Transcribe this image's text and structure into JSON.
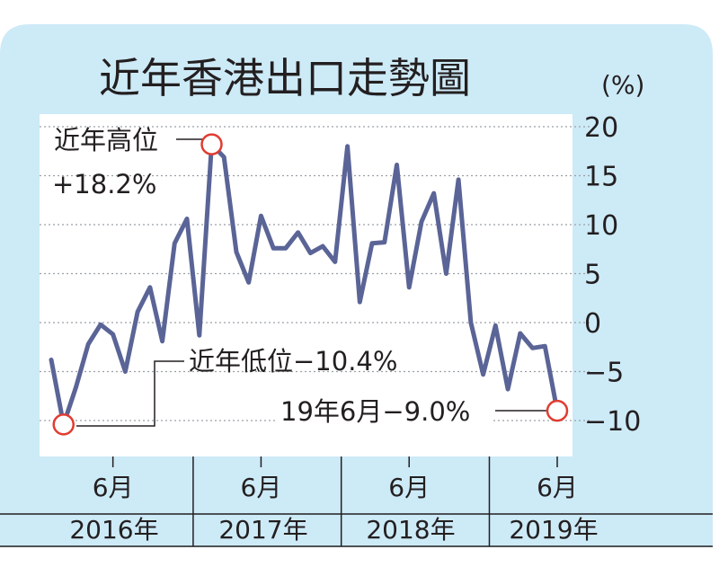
{
  "title": "近年香港出口走勢圖",
  "unit_label": "(%)",
  "colors": {
    "panel": "#cdeaf7",
    "plot_bg": "#ffffff",
    "line": "#5a6496",
    "marker": "#e03c31",
    "text": "#231f20",
    "grid": "#9aa0a6"
  },
  "chart_data": {
    "type": "line",
    "title": "近年香港出口走勢圖",
    "ylabel": "(%)",
    "xlabel": "",
    "ylim": [
      -12.5,
      21
    ],
    "yticks": [
      20,
      15,
      10,
      5,
      0,
      -5,
      -10
    ],
    "ytick_labels": [
      "20",
      "15",
      "10",
      "5",
      "0",
      "−5",
      "−10"
    ],
    "grid": true,
    "x_month_labels": [
      "6月",
      "6月",
      "6月",
      "6月"
    ],
    "year_labels": [
      "2016年",
      "2017年",
      "2018年",
      "2019年"
    ],
    "x": [
      "2016-01",
      "2016-02",
      "2016-03",
      "2016-04",
      "2016-05",
      "2016-06",
      "2016-07",
      "2016-08",
      "2016-09",
      "2016-10",
      "2016-11",
      "2016-12",
      "2017-01",
      "2017-02",
      "2017-03",
      "2017-04",
      "2017-05",
      "2017-06",
      "2017-07",
      "2017-08",
      "2017-09",
      "2017-10",
      "2017-11",
      "2017-12",
      "2018-01",
      "2018-02",
      "2018-03",
      "2018-04",
      "2018-05",
      "2018-06",
      "2018-07",
      "2018-08",
      "2018-09",
      "2018-10",
      "2018-11",
      "2018-12",
      "2019-01",
      "2019-02",
      "2019-03",
      "2019-04",
      "2019-05",
      "2019-06"
    ],
    "values": [
      -3.8,
      -10.4,
      -6.6,
      -2.2,
      -0.2,
      -1.2,
      -5.0,
      1.1,
      3.6,
      -1.9,
      8.1,
      10.6,
      -1.3,
      18.2,
      16.9,
      7.2,
      4.1,
      10.9,
      7.6,
      7.6,
      9.2,
      7.1,
      7.8,
      6.2,
      18.0,
      2.1,
      8.1,
      8.2,
      16.1,
      3.6,
      10.3,
      13.2,
      5.0,
      14.6,
      0.0,
      -5.3,
      -0.3,
      -6.8,
      -1.1,
      -2.6,
      -2.4,
      -9.0
    ],
    "annotations": [
      {
        "label_line1": "近年高位",
        "label_line2": "+18.2%",
        "point_index": 13
      },
      {
        "label": "近年低位−10.4%",
        "point_index": 1
      },
      {
        "label": "19年6月−9.0%",
        "point_index": 41
      }
    ]
  }
}
